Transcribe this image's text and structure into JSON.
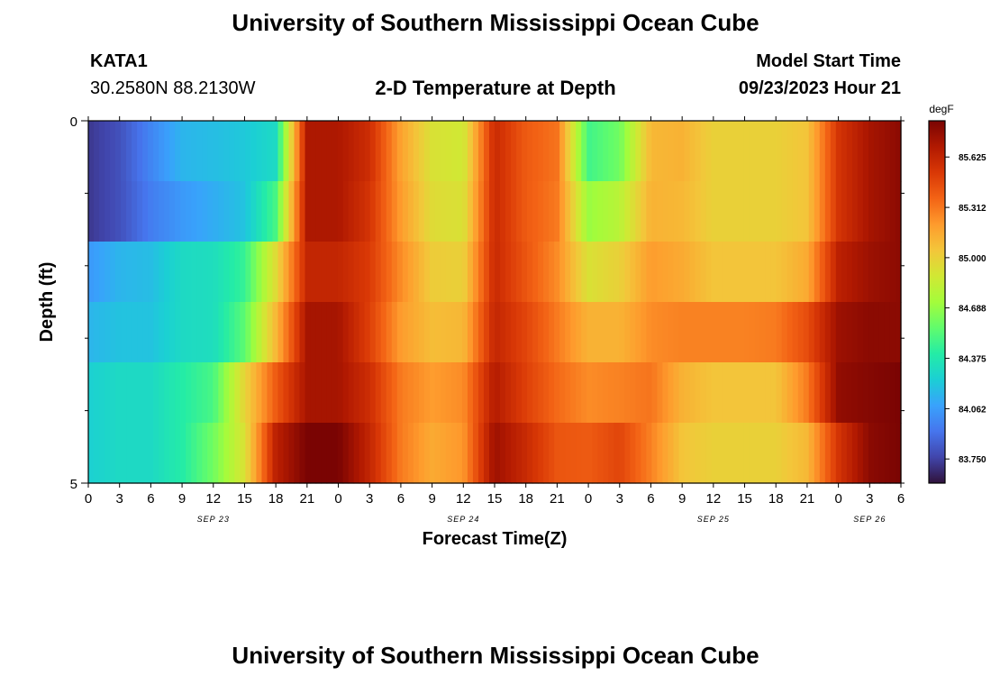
{
  "header": {
    "title": "University of Southern Mississippi Ocean Cube",
    "station_id": "KATA1",
    "station_coords": "30.2580N  88.2130W",
    "chart_title": "2-D Temperature at Depth",
    "model_start_label": "Model Start Time",
    "model_start_value": "09/23/2023 Hour 21"
  },
  "footer": {
    "title": "University of Southern Mississippi Ocean Cube"
  },
  "chart_data": {
    "type": "heatmap",
    "title": "2-D Temperature at Depth",
    "xlabel": "Forecast Time(Z)",
    "ylabel": "Depth (ft)",
    "x_tick_labels": [
      "0",
      "3",
      "6",
      "9",
      "12",
      "15",
      "18",
      "21",
      "0",
      "3",
      "6",
      "9",
      "12",
      "15",
      "18",
      "21",
      "0",
      "3",
      "6",
      "9",
      "12",
      "15",
      "18",
      "21",
      "0",
      "3",
      "6"
    ],
    "date_labels": [
      {
        "label": "SEP 23",
        "tick_index": 4
      },
      {
        "label": "SEP 24",
        "tick_index": 12
      },
      {
        "label": "SEP 25",
        "tick_index": 20
      },
      {
        "label": "SEP 26",
        "tick_index": 25
      }
    ],
    "y_tick_labels": [
      "0",
      "5"
    ],
    "ylim": [
      0,
      5
    ],
    "colorbar": {
      "unit": "degF",
      "min": 83.6,
      "max": 85.85,
      "tick_labels": [
        "85.625",
        "85.312",
        "85.000",
        "84.688",
        "84.375",
        "84.062",
        "83.750"
      ],
      "colors": [
        "#30123b",
        "#4145ab",
        "#4675ed",
        "#39a2fc",
        "#1bcfd4",
        "#24eca6",
        "#61fc6c",
        "#a4fc3b",
        "#d1e834",
        "#f3c63a",
        "#fe9b2d",
        "#f36315",
        "#d93806",
        "#b11901",
        "#7a0403"
      ]
    },
    "depth_rows": [
      0,
      1,
      2,
      3,
      4,
      5
    ],
    "time_hours": [
      0,
      3,
      6,
      9,
      12,
      15,
      18,
      21,
      24,
      27,
      30,
      33,
      36,
      39,
      42,
      45,
      48,
      51,
      54,
      57,
      60,
      63,
      66,
      69,
      72,
      75,
      78
    ],
    "values": [
      [
        83.72,
        83.8,
        83.98,
        84.15,
        84.18,
        84.22,
        84.3,
        85.7,
        85.7,
        85.58,
        85.18,
        84.92,
        84.88,
        85.6,
        85.4,
        85.32,
        84.48,
        84.6,
        85.1,
        85.12,
        85.0,
        85.0,
        85.0,
        85.05,
        85.55,
        85.72,
        85.8
      ],
      [
        83.72,
        83.8,
        83.95,
        84.05,
        84.12,
        84.2,
        84.5,
        85.7,
        85.7,
        85.55,
        85.2,
        84.95,
        84.92,
        85.6,
        85.4,
        85.3,
        84.7,
        84.8,
        85.12,
        85.1,
        85.0,
        85.0,
        85.0,
        85.05,
        85.55,
        85.72,
        85.8
      ],
      [
        84.05,
        84.15,
        84.18,
        84.3,
        84.32,
        84.45,
        84.95,
        85.62,
        85.62,
        85.52,
        85.25,
        85.02,
        85.0,
        85.6,
        85.42,
        85.25,
        84.92,
        85.0,
        85.2,
        85.15,
        85.05,
        85.05,
        85.05,
        85.15,
        85.65,
        85.75,
        85.8
      ],
      [
        84.15,
        84.2,
        84.2,
        84.3,
        84.32,
        84.55,
        85.1,
        85.72,
        85.72,
        85.5,
        85.2,
        85.08,
        85.1,
        85.62,
        85.48,
        85.3,
        85.12,
        85.12,
        85.25,
        85.28,
        85.28,
        85.28,
        85.3,
        85.45,
        85.75,
        85.8,
        85.8
      ],
      [
        84.25,
        84.3,
        84.3,
        84.4,
        84.5,
        84.98,
        85.4,
        85.72,
        85.72,
        85.58,
        85.3,
        85.2,
        85.25,
        85.68,
        85.5,
        85.35,
        85.25,
        85.28,
        85.32,
        85.12,
        85.05,
        85.05,
        85.05,
        85.3,
        85.78,
        85.82,
        85.85
      ],
      [
        84.25,
        84.3,
        84.3,
        84.4,
        84.6,
        84.92,
        85.65,
        85.85,
        85.85,
        85.62,
        85.3,
        85.15,
        85.22,
        85.75,
        85.6,
        85.42,
        85.4,
        85.48,
        85.28,
        85.05,
        85.0,
        85.0,
        85.0,
        85.1,
        85.55,
        85.8,
        85.85
      ]
    ]
  }
}
